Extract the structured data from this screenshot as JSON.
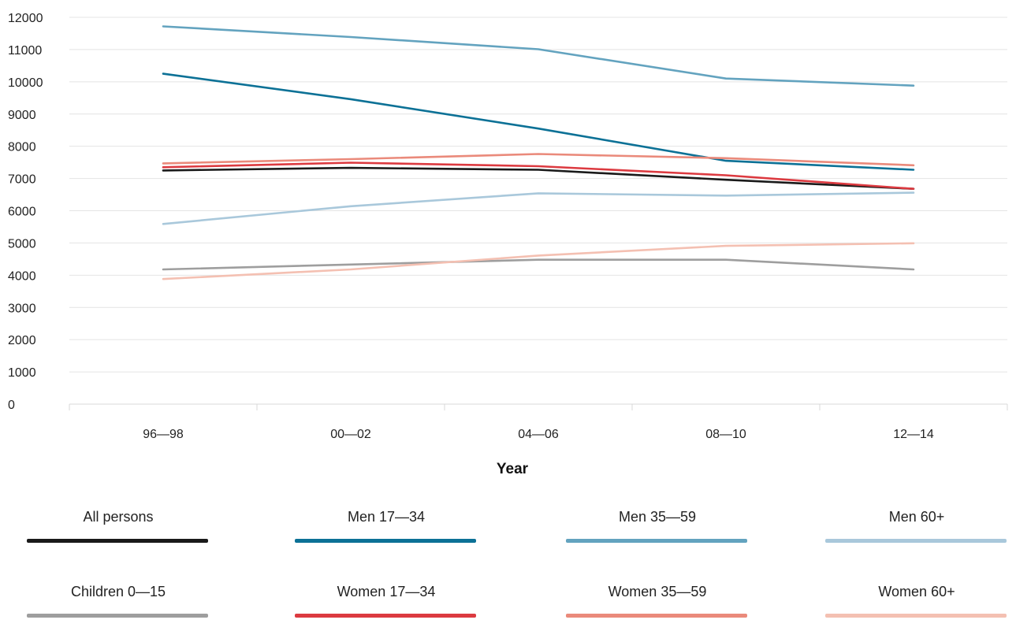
{
  "chart_data": {
    "type": "line",
    "xlabel": "Year",
    "ylabel": "",
    "categories": [
      "96—98",
      "00—02",
      "04—06",
      "08—10",
      "12—14"
    ],
    "ylim": [
      0,
      12000
    ],
    "yticks": [
      0,
      1000,
      2000,
      3000,
      4000,
      5000,
      6000,
      7000,
      8000,
      9000,
      10000,
      11000,
      12000
    ],
    "grid": true,
    "legend_position": "bottom",
    "series": [
      {
        "name": "All persons",
        "color": "#1a1a1a",
        "values": [
          7250,
          7330,
          7270,
          6960,
          6680
        ]
      },
      {
        "name": "Men 17—34",
        "color": "#0c7196",
        "values": [
          10250,
          9460,
          8550,
          7550,
          7270
        ]
      },
      {
        "name": "Men 35—59",
        "color": "#63a3bf",
        "values": [
          11720,
          11390,
          11010,
          10100,
          9880
        ]
      },
      {
        "name": "Men 60+",
        "color": "#a9c8db",
        "values": [
          5590,
          6140,
          6540,
          6470,
          6560
        ]
      },
      {
        "name": "Children 0—15",
        "color": "#9e9e9e",
        "values": [
          4180,
          4330,
          4480,
          4480,
          4180
        ]
      },
      {
        "name": "Women 17—34",
        "color": "#dc3a40",
        "values": [
          7350,
          7490,
          7380,
          7100,
          6680
        ]
      },
      {
        "name": "Women 35—59",
        "color": "#ea8a7b",
        "values": [
          7470,
          7600,
          7760,
          7630,
          7410
        ]
      },
      {
        "name": "Women 60+",
        "color": "#f4c0b2",
        "values": [
          3880,
          4180,
          4610,
          4910,
          4990
        ]
      }
    ]
  }
}
